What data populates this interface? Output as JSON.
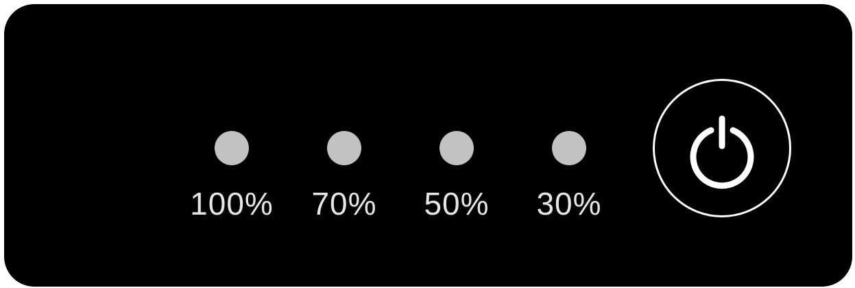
{
  "levels": [
    {
      "label": "100%",
      "active": false
    },
    {
      "label": "70%",
      "active": false
    },
    {
      "label": "50%",
      "active": false
    },
    {
      "label": "30%",
      "active": false
    }
  ],
  "colors": {
    "panel": "#000000",
    "led_off": "#c2c2c2",
    "label_text": "#e6e6e6",
    "power_icon": "#ffffff"
  },
  "icons": {
    "power": "power-icon"
  }
}
